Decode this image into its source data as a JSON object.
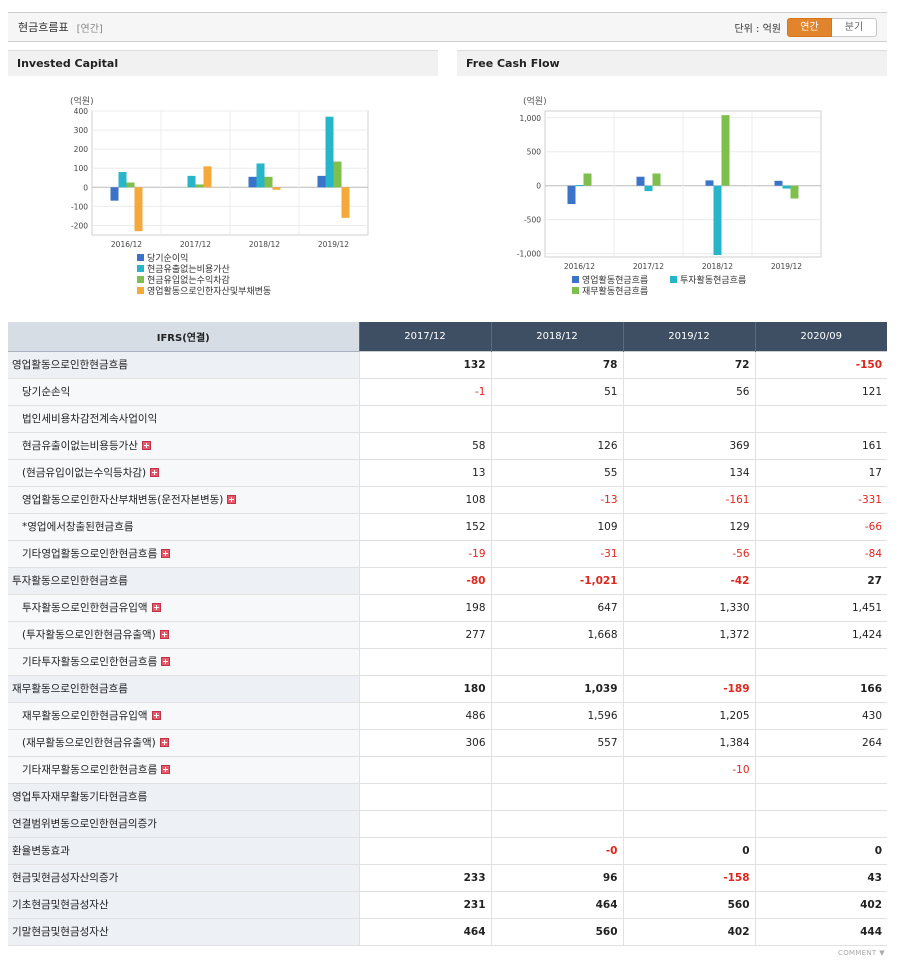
{
  "header": {
    "title": "현금흐름표",
    "sub": "[연간]",
    "unit_label": "단위 : 억원",
    "toggle_annual": "연간",
    "toggle_quarter": "분기"
  },
  "panels": {
    "left_title": "Invested Capital",
    "right_title": "Free Cash Flow"
  },
  "chart_data": [
    {
      "type": "bar",
      "unit": "(억원)",
      "categories": [
        "2016/12",
        "2017/12",
        "2018/12",
        "2019/12"
      ],
      "ylim": [
        -250,
        400
      ],
      "yticks": [
        "400",
        "300",
        "200",
        "100",
        "0",
        "-100",
        "-200"
      ],
      "series": [
        {
          "name": "당기순이익",
          "color": "#3a73c7",
          "values": [
            -70,
            null,
            55,
            60
          ]
        },
        {
          "name": "현금유출없는비용가산",
          "color": "#27b5c9",
          "values": [
            80,
            60,
            125,
            370
          ]
        },
        {
          "name": "현금유입없는수익차감",
          "color": "#7fbf4d",
          "values": [
            25,
            15,
            55,
            135
          ]
        },
        {
          "name": "영업활동으로인한자산및부채변동",
          "color": "#f5a93a",
          "values": [
            -230,
            110,
            -13,
            -160
          ]
        }
      ],
      "legend": "bottom"
    },
    {
      "type": "bar",
      "unit": "(억원)",
      "categories": [
        "2016/12",
        "2017/12",
        "2018/12",
        "2019/12"
      ],
      "ylim": [
        -1050,
        1100
      ],
      "yticks": [
        "1,000",
        "500",
        "0",
        "-500",
        "-1,000"
      ],
      "series": [
        {
          "name": "영업활동현금흐름",
          "color": "#3a73c7",
          "values": [
            -270,
            132,
            78,
            72
          ]
        },
        {
          "name": "투자활동현금흐름",
          "color": "#27b5c9",
          "values": [
            10,
            -80,
            -1021,
            -42
          ]
        },
        {
          "name": "재무활동현금흐름",
          "color": "#7fbf4d",
          "values": [
            180,
            180,
            1039,
            -189
          ]
        }
      ],
      "legend": "bottom"
    }
  ],
  "table": {
    "header": [
      "IFRS(연결)",
      "2017/12",
      "2018/12",
      "2019/12",
      "2020/09"
    ],
    "rows": [
      {
        "label": "영업활동으로인한현금흐름",
        "major": true,
        "plus": false,
        "values": [
          "132",
          "78",
          "72",
          "-150"
        ]
      },
      {
        "label": "당기순손익",
        "major": false,
        "plus": false,
        "values": [
          "-1",
          "51",
          "56",
          "121"
        ]
      },
      {
        "label": "법인세비용차감전계속사업이익",
        "major": false,
        "plus": false,
        "values": [
          "",
          "",
          "",
          ""
        ]
      },
      {
        "label": "현금유출이없는비용등가산",
        "major": false,
        "plus": true,
        "values": [
          "58",
          "126",
          "369",
          "161"
        ]
      },
      {
        "label": "(현금유입이없는수익등차감)",
        "major": false,
        "plus": true,
        "values": [
          "13",
          "55",
          "134",
          "17"
        ]
      },
      {
        "label": "영업활동으로인한자산부채변동(운전자본변동)",
        "major": false,
        "plus": true,
        "values": [
          "108",
          "-13",
          "-161",
          "-331"
        ]
      },
      {
        "label": "*영업에서창출된현금흐름",
        "major": false,
        "plus": false,
        "values": [
          "152",
          "109",
          "129",
          "-66"
        ]
      },
      {
        "label": "기타영업활동으로인한현금흐름",
        "major": false,
        "plus": true,
        "values": [
          "-19",
          "-31",
          "-56",
          "-84"
        ]
      },
      {
        "label": "투자활동으로인한현금흐름",
        "major": true,
        "plus": false,
        "values": [
          "-80",
          "-1,021",
          "-42",
          "27"
        ]
      },
      {
        "label": "투자활동으로인한현금유입액",
        "major": false,
        "plus": true,
        "values": [
          "198",
          "647",
          "1,330",
          "1,451"
        ]
      },
      {
        "label": "(투자활동으로인한현금유출액)",
        "major": false,
        "plus": true,
        "values": [
          "277",
          "1,668",
          "1,372",
          "1,424"
        ]
      },
      {
        "label": "기타투자활동으로인한현금흐름",
        "major": false,
        "plus": true,
        "values": [
          "",
          "",
          "",
          ""
        ]
      },
      {
        "label": "재무활동으로인한현금흐름",
        "major": true,
        "plus": false,
        "values": [
          "180",
          "1,039",
          "-189",
          "166"
        ]
      },
      {
        "label": "재무활동으로인한현금유입액",
        "major": false,
        "plus": true,
        "values": [
          "486",
          "1,596",
          "1,205",
          "430"
        ]
      },
      {
        "label": "(재무활동으로인한현금유출액)",
        "major": false,
        "plus": true,
        "values": [
          "306",
          "557",
          "1,384",
          "264"
        ]
      },
      {
        "label": "기타재무활동으로인한현금흐름",
        "major": false,
        "plus": true,
        "values": [
          "",
          "",
          "-10",
          ""
        ]
      },
      {
        "label": "영업투자재무활동기타현금흐름",
        "major": true,
        "plus": false,
        "values": [
          "",
          "",
          "",
          ""
        ]
      },
      {
        "label": "연결범위변동으로인한현금의증가",
        "major": true,
        "plus": false,
        "values": [
          "",
          "",
          "",
          ""
        ]
      },
      {
        "label": "환율변동효과",
        "major": true,
        "plus": false,
        "values": [
          "",
          "-0",
          "0",
          "0"
        ]
      },
      {
        "label": "현금및현금성자산의증가",
        "major": true,
        "plus": false,
        "values": [
          "233",
          "96",
          "-158",
          "43"
        ]
      },
      {
        "label": "기초현금및현금성자산",
        "major": true,
        "plus": false,
        "values": [
          "231",
          "464",
          "560",
          "402"
        ]
      },
      {
        "label": "기말현금및현금성자산",
        "major": true,
        "plus": false,
        "values": [
          "464",
          "560",
          "402",
          "444"
        ]
      }
    ]
  },
  "footer": {
    "comment": "COMMENT"
  }
}
